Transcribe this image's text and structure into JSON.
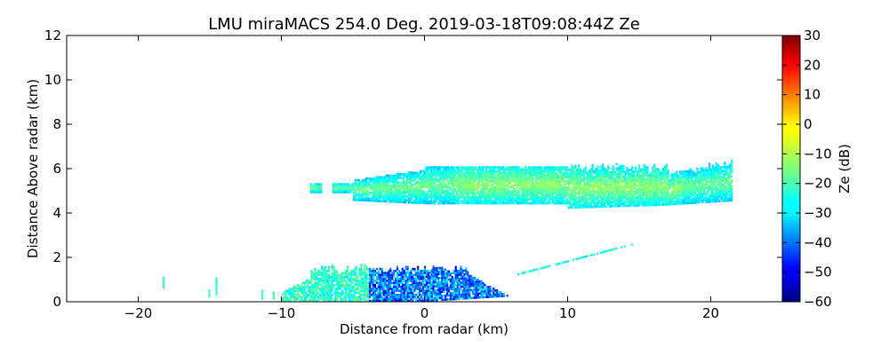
{
  "chart_data": {
    "type": "heatmap",
    "title": "LMU miraMACS 254.0 Deg. 2019-03-18T09:08:44Z  Ze",
    "xlabel": "Distance from radar (km)",
    "ylabel": "Distance Above radar  (km)",
    "xlim": [
      -25,
      25
    ],
    "ylim": [
      0,
      12
    ],
    "x_ticks": [
      -20,
      -10,
      0,
      10,
      20
    ],
    "y_ticks": [
      0,
      2,
      4,
      6,
      8,
      10,
      12
    ],
    "x_tick_labels": [
      "−20",
      "−10",
      "0",
      "10",
      "20"
    ],
    "y_tick_labels": [
      "0",
      "2",
      "4",
      "6",
      "8",
      "10",
      "12"
    ],
    "grid": false,
    "colorbar": {
      "label": "Ze (dB)",
      "range": [
        -60,
        30
      ],
      "ticks": [
        30,
        20,
        10,
        0,
        -10,
        -20,
        -30,
        -40,
        -50,
        -60
      ],
      "tick_labels": [
        "30",
        "20",
        "10",
        "0",
        "−10",
        "−20",
        "−30",
        "−40",
        "−50",
        "−60"
      ],
      "colormap": "jet"
    },
    "regions": [
      {
        "name": "upper cloud layer",
        "x_range": [
          -8,
          21.5
        ],
        "y_range": [
          4.3,
          6.3
        ],
        "ze_typical": [
          -30,
          -10
        ]
      },
      {
        "name": "lower cloud layer",
        "x_range": [
          -10,
          6
        ],
        "y_range": [
          0,
          1.8
        ],
        "ze_typical": [
          -50,
          -15
        ]
      },
      {
        "name": "slanted echo line",
        "x_range": [
          6.5,
          14.5
        ],
        "y_range": [
          1.2,
          2.6
        ],
        "ze_typical": [
          -30,
          -20
        ]
      }
    ]
  }
}
